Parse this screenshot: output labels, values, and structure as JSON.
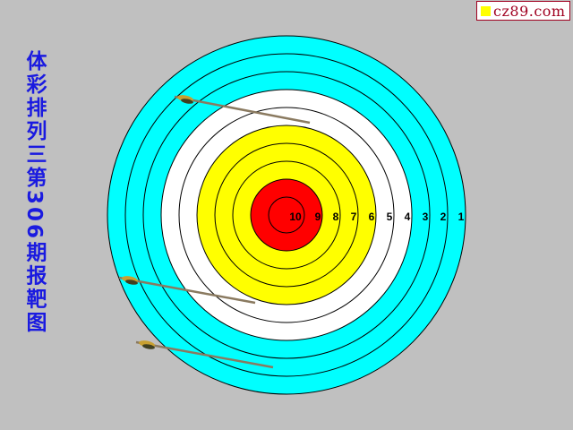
{
  "badge": {
    "text": "cz89.com",
    "square_color": "#ffff00",
    "text_color": "#a00020"
  },
  "title": "体彩排列三第306期报靶图",
  "target": {
    "ring_scores": [
      "10",
      "9",
      "8",
      "7",
      "6",
      "5",
      "4",
      "3",
      "2",
      "1"
    ],
    "ring_colors": [
      "#ff0000",
      "#ff0000",
      "#ffff00",
      "#ffff00",
      "#ffff00",
      "#ffffff",
      "#ffffff",
      "#00ffff",
      "#00ffff",
      "#00ffff"
    ],
    "arrow_count": 3,
    "arrow_shaft_color": "#8a7a60",
    "arrow_fletch_color": "#c8a030"
  }
}
